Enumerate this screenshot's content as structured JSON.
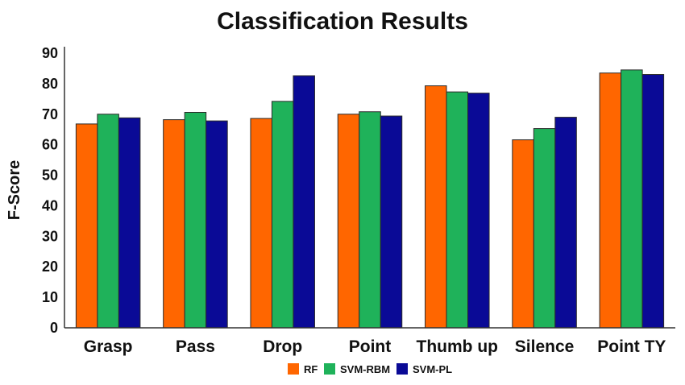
{
  "chart_data": {
    "type": "bar",
    "title": "Classification Results",
    "xlabel": "",
    "ylabel": "F-Score",
    "ylim": [
      0,
      90
    ],
    "yticks": [
      0,
      10,
      20,
      30,
      40,
      50,
      60,
      70,
      80,
      90
    ],
    "grid": false,
    "legend_position": "bottom",
    "categories": [
      "Grasp",
      "Pass",
      "Drop",
      "Point",
      "Thumb up",
      "Silence",
      "Point TY"
    ],
    "series": [
      {
        "name": "RF",
        "color": "#ff6600",
        "values": [
          66.8,
          68.2,
          68.6,
          70.0,
          79.3,
          61.6,
          83.5
        ]
      },
      {
        "name": "SVM-RBM",
        "color": "#1fb25a",
        "values": [
          70.0,
          70.6,
          74.2,
          70.8,
          77.3,
          65.3,
          84.5
        ]
      },
      {
        "name": "SVM-PL",
        "color": "#0a0a96",
        "values": [
          68.8,
          67.8,
          82.6,
          69.4,
          76.9,
          69.0,
          83.0
        ]
      }
    ]
  }
}
